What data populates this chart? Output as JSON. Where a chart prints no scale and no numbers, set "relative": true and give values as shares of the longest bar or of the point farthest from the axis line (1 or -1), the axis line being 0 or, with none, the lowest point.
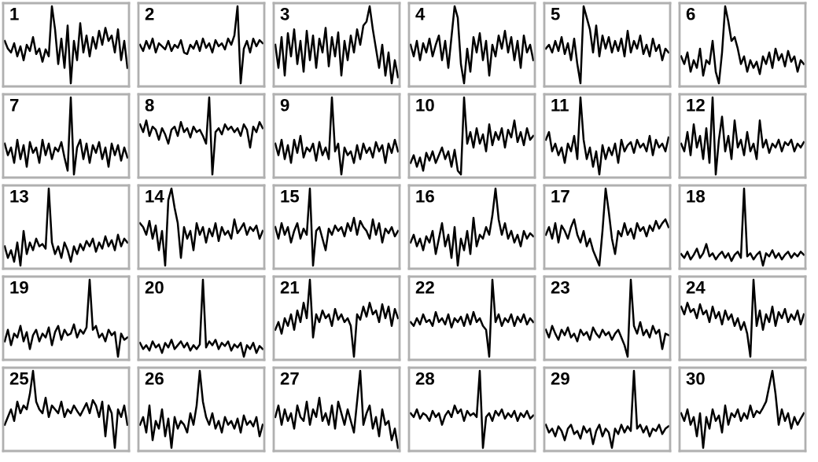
{
  "chart_data": [
    {
      "type": "line",
      "title": "1",
      "relative": true,
      "color": "#000000",
      "categories": [
        null,
        null,
        null,
        null,
        null,
        null,
        null,
        null,
        null,
        null,
        null,
        null,
        null,
        null,
        null,
        null,
        null,
        null,
        null,
        null,
        null,
        null,
        null,
        null,
        null,
        null,
        null,
        null,
        null,
        null,
        null,
        null,
        null,
        null,
        null,
        null,
        null,
        null,
        null,
        null
      ],
      "values": [
        0.55,
        0.45,
        0.4,
        0.52,
        0.35,
        0.48,
        0.3,
        0.5,
        0.42,
        0.6,
        0.38,
        0.45,
        0.28,
        0.44,
        0.35,
        1.0,
        0.7,
        0.25,
        0.58,
        0.2,
        0.75,
        0.0,
        0.55,
        0.3,
        0.78,
        0.4,
        0.62,
        0.35,
        0.6,
        0.45,
        0.68,
        0.5,
        0.72,
        0.55,
        0.62,
        0.4,
        0.7,
        0.3,
        0.55,
        0.2
      ]
    },
    {
      "type": "line",
      "title": "2",
      "relative": true,
      "color": "#000000",
      "categories": [
        null,
        null,
        null,
        null,
        null,
        null,
        null,
        null,
        null,
        null,
        null,
        null,
        null,
        null,
        null,
        null,
        null,
        null,
        null,
        null,
        null,
        null,
        null,
        null,
        null,
        null,
        null,
        null,
        null,
        null,
        null,
        null,
        null,
        null,
        null,
        null,
        null,
        null,
        null,
        null
      ],
      "values": [
        0.5,
        0.42,
        0.55,
        0.45,
        0.58,
        0.4,
        0.52,
        0.48,
        0.44,
        0.55,
        0.42,
        0.5,
        0.46,
        0.56,
        0.4,
        0.38,
        0.5,
        0.45,
        0.55,
        0.42,
        0.58,
        0.46,
        0.52,
        0.4,
        0.56,
        0.48,
        0.52,
        0.44,
        0.58,
        0.5,
        0.62,
        1.0,
        0.0,
        0.45,
        0.55,
        0.4,
        0.58,
        0.48,
        0.56,
        0.52
      ]
    },
    {
      "type": "line",
      "title": "3",
      "relative": true,
      "color": "#000000",
      "categories": [
        null,
        null,
        null,
        null,
        null,
        null,
        null,
        null,
        null,
        null,
        null,
        null,
        null,
        null,
        null,
        null,
        null,
        null,
        null,
        null,
        null,
        null,
        null,
        null,
        null,
        null,
        null,
        null,
        null,
        null,
        null,
        null,
        null,
        null,
        null,
        null,
        null,
        null,
        null,
        null
      ],
      "values": [
        0.5,
        0.2,
        0.6,
        0.1,
        0.65,
        0.35,
        0.7,
        0.25,
        0.55,
        0.15,
        0.68,
        0.3,
        0.62,
        0.2,
        0.58,
        0.4,
        0.72,
        0.22,
        0.6,
        0.35,
        0.66,
        0.1,
        0.55,
        0.3,
        0.62,
        0.4,
        0.7,
        0.5,
        0.75,
        0.8,
        1.0,
        0.7,
        0.45,
        0.2,
        0.5,
        0.1,
        0.4,
        0.0,
        0.3,
        0.08
      ]
    },
    {
      "type": "line",
      "title": "4",
      "relative": true,
      "color": "#000000",
      "categories": [
        null,
        null,
        null,
        null,
        null,
        null,
        null,
        null,
        null,
        null,
        null,
        null,
        null,
        null,
        null,
        null,
        null,
        null,
        null,
        null,
        null,
        null,
        null,
        null,
        null,
        null,
        null,
        null,
        null,
        null,
        null,
        null,
        null,
        null,
        null,
        null,
        null,
        null,
        null,
        null
      ],
      "values": [
        0.5,
        0.35,
        0.55,
        0.3,
        0.52,
        0.4,
        0.58,
        0.35,
        0.5,
        0.62,
        0.3,
        0.55,
        0.2,
        0.6,
        1.0,
        0.85,
        0.25,
        0.0,
        0.45,
        0.15,
        0.6,
        0.4,
        0.65,
        0.3,
        0.55,
        0.1,
        0.5,
        0.35,
        0.62,
        0.45,
        0.68,
        0.4,
        0.6,
        0.3,
        0.55,
        0.2,
        0.62,
        0.4,
        0.5,
        0.3
      ]
    },
    {
      "type": "line",
      "title": "5",
      "relative": true,
      "color": "#000000",
      "categories": [
        null,
        null,
        null,
        null,
        null,
        null,
        null,
        null,
        null,
        null,
        null,
        null,
        null,
        null,
        null,
        null,
        null,
        null,
        null,
        null,
        null,
        null,
        null,
        null,
        null,
        null,
        null,
        null,
        null,
        null,
        null,
        null,
        null,
        null,
        null,
        null,
        null,
        null,
        null,
        null
      ],
      "values": [
        0.45,
        0.5,
        0.4,
        0.55,
        0.42,
        0.6,
        0.38,
        0.52,
        0.3,
        0.58,
        0.25,
        0.0,
        1.0,
        0.85,
        0.7,
        0.4,
        0.75,
        0.35,
        0.62,
        0.45,
        0.6,
        0.4,
        0.55,
        0.42,
        0.58,
        0.35,
        0.68,
        0.4,
        0.55,
        0.45,
        0.62,
        0.38,
        0.5,
        0.35,
        0.58,
        0.42,
        0.5,
        0.3,
        0.45,
        0.4
      ]
    },
    {
      "type": "line",
      "title": "6",
      "relative": true,
      "color": "#000000",
      "categories": [
        null,
        null,
        null,
        null,
        null,
        null,
        null,
        null,
        null,
        null,
        null,
        null,
        null,
        null,
        null,
        null,
        null,
        null,
        null,
        null,
        null,
        null,
        null,
        null,
        null,
        null,
        null,
        null,
        null,
        null,
        null,
        null,
        null,
        null,
        null,
        null,
        null,
        null,
        null,
        null
      ],
      "values": [
        0.35,
        0.25,
        0.4,
        0.15,
        0.3,
        0.2,
        0.45,
        0.1,
        0.3,
        0.25,
        0.55,
        0.15,
        0.0,
        0.4,
        1.0,
        0.8,
        0.55,
        0.6,
        0.45,
        0.25,
        0.35,
        0.15,
        0.3,
        0.2,
        0.28,
        0.12,
        0.35,
        0.25,
        0.4,
        0.2,
        0.45,
        0.3,
        0.38,
        0.22,
        0.42,
        0.28,
        0.35,
        0.15,
        0.3,
        0.25
      ]
    },
    {
      "type": "line",
      "title": "7",
      "relative": true,
      "color": "#000000",
      "categories": [
        null,
        null,
        null,
        null,
        null,
        null,
        null,
        null,
        null,
        null,
        null,
        null,
        null,
        null,
        null,
        null,
        null,
        null,
        null,
        null,
        null,
        null,
        null,
        null,
        null,
        null,
        null,
        null,
        null,
        null,
        null,
        null,
        null,
        null,
        null,
        null,
        null,
        null,
        null,
        null
      ],
      "values": [
        0.4,
        0.25,
        0.35,
        0.15,
        0.45,
        0.2,
        0.38,
        0.1,
        0.42,
        0.28,
        0.35,
        0.15,
        0.45,
        0.25,
        0.4,
        0.2,
        0.35,
        0.3,
        0.42,
        0.22,
        0.05,
        1.0,
        0.0,
        0.35,
        0.45,
        0.2,
        0.4,
        0.15,
        0.38,
        0.28,
        0.42,
        0.2,
        0.35,
        0.1,
        0.4,
        0.25,
        0.38,
        0.18,
        0.35,
        0.22
      ]
    },
    {
      "type": "line",
      "title": "8",
      "relative": true,
      "color": "#000000",
      "categories": [
        null,
        null,
        null,
        null,
        null,
        null,
        null,
        null,
        null,
        null,
        null,
        null,
        null,
        null,
        null,
        null,
        null,
        null,
        null,
        null,
        null,
        null,
        null,
        null,
        null,
        null,
        null,
        null,
        null,
        null,
        null,
        null,
        null,
        null,
        null,
        null,
        null,
        null,
        null,
        null
      ],
      "values": [
        0.65,
        0.55,
        0.7,
        0.5,
        0.62,
        0.58,
        0.45,
        0.6,
        0.52,
        0.4,
        0.58,
        0.62,
        0.5,
        0.68,
        0.55,
        0.6,
        0.48,
        0.62,
        0.55,
        0.58,
        0.5,
        0.4,
        1.0,
        0.0,
        0.55,
        0.6,
        0.52,
        0.65,
        0.58,
        0.62,
        0.55,
        0.6,
        0.5,
        0.65,
        0.58,
        0.35,
        0.62,
        0.55,
        0.68,
        0.6
      ]
    },
    {
      "type": "line",
      "title": "9",
      "relative": true,
      "color": "#000000",
      "categories": [
        null,
        null,
        null,
        null,
        null,
        null,
        null,
        null,
        null,
        null,
        null,
        null,
        null,
        null,
        null,
        null,
        null,
        null,
        null,
        null,
        null,
        null,
        null,
        null,
        null,
        null,
        null,
        null,
        null,
        null,
        null,
        null,
        null,
        null,
        null,
        null,
        null,
        null,
        null,
        null
      ],
      "values": [
        0.4,
        0.25,
        0.45,
        0.2,
        0.38,
        0.15,
        0.45,
        0.28,
        0.5,
        0.22,
        0.35,
        0.3,
        0.4,
        0.18,
        0.42,
        0.25,
        0.35,
        0.2,
        1.0,
        0.3,
        0.4,
        0.0,
        0.35,
        0.25,
        0.3,
        0.15,
        0.38,
        0.2,
        0.4,
        0.28,
        0.35,
        0.22,
        0.42,
        0.3,
        0.38,
        0.15,
        0.4,
        0.28,
        0.45,
        0.3
      ]
    },
    {
      "type": "line",
      "title": "10",
      "relative": true,
      "color": "#000000",
      "categories": [
        null,
        null,
        null,
        null,
        null,
        null,
        null,
        null,
        null,
        null,
        null,
        null,
        null,
        null,
        null,
        null,
        null,
        null,
        null,
        null,
        null,
        null,
        null,
        null,
        null,
        null,
        null,
        null,
        null,
        null,
        null,
        null,
        null,
        null,
        null,
        null,
        null,
        null,
        null,
        null
      ],
      "values": [
        0.15,
        0.25,
        0.1,
        0.22,
        0.05,
        0.28,
        0.18,
        0.3,
        0.15,
        0.25,
        0.35,
        0.2,
        0.3,
        0.1,
        0.32,
        0.05,
        0.0,
        1.0,
        0.4,
        0.55,
        0.35,
        0.6,
        0.4,
        0.52,
        0.3,
        0.65,
        0.38,
        0.55,
        0.45,
        0.6,
        0.35,
        0.58,
        0.48,
        0.7,
        0.42,
        0.55,
        0.38,
        0.6,
        0.45,
        0.5
      ]
    },
    {
      "type": "line",
      "title": "11",
      "relative": true,
      "color": "#000000",
      "categories": [
        null,
        null,
        null,
        null,
        null,
        null,
        null,
        null,
        null,
        null,
        null,
        null,
        null,
        null,
        null,
        null,
        null,
        null,
        null,
        null,
        null,
        null,
        null,
        null,
        null,
        null,
        null,
        null,
        null,
        null,
        null,
        null,
        null,
        null,
        null,
        null,
        null,
        null,
        null,
        null
      ],
      "values": [
        0.45,
        0.55,
        0.3,
        0.4,
        0.25,
        0.35,
        0.15,
        0.4,
        0.3,
        0.5,
        0.2,
        1.0,
        0.45,
        0.2,
        0.35,
        0.1,
        0.3,
        0.0,
        0.38,
        0.2,
        0.35,
        0.25,
        0.4,
        0.15,
        0.45,
        0.3,
        0.38,
        0.42,
        0.28,
        0.45,
        0.35,
        0.4,
        0.3,
        0.5,
        0.25,
        0.45,
        0.35,
        0.4,
        0.3,
        0.48
      ]
    },
    {
      "type": "line",
      "title": "12",
      "relative": true,
      "color": "#000000",
      "categories": [
        null,
        null,
        null,
        null,
        null,
        null,
        null,
        null,
        null,
        null,
        null,
        null,
        null,
        null,
        null,
        null,
        null,
        null,
        null,
        null,
        null,
        null,
        null,
        null,
        null,
        null,
        null,
        null,
        null,
        null,
        null,
        null,
        null,
        null,
        null,
        null,
        null,
        null,
        null,
        null
      ],
      "values": [
        0.4,
        0.3,
        0.55,
        0.25,
        0.65,
        0.35,
        0.5,
        0.2,
        0.6,
        0.15,
        1.0,
        0.0,
        0.45,
        0.75,
        0.3,
        0.5,
        0.2,
        0.7,
        0.35,
        0.45,
        0.25,
        0.55,
        0.3,
        0.4,
        0.2,
        0.7,
        0.35,
        0.45,
        0.28,
        0.4,
        0.35,
        0.45,
        0.3,
        0.42,
        0.38,
        0.45,
        0.3,
        0.4,
        0.35,
        0.42
      ]
    },
    {
      "type": "line",
      "title": "13",
      "relative": true,
      "color": "#000000",
      "categories": [
        null,
        null,
        null,
        null,
        null,
        null,
        null,
        null,
        null,
        null,
        null,
        null,
        null,
        null,
        null,
        null,
        null,
        null,
        null,
        null,
        null,
        null,
        null,
        null,
        null,
        null,
        null,
        null,
        null,
        null,
        null,
        null,
        null,
        null,
        null,
        null,
        null,
        null,
        null,
        null
      ],
      "values": [
        0.25,
        0.1,
        0.2,
        0.05,
        0.3,
        0.0,
        0.45,
        0.15,
        0.3,
        0.2,
        0.35,
        0.25,
        0.28,
        0.22,
        1.0,
        0.3,
        0.15,
        0.25,
        0.1,
        0.3,
        0.2,
        0.05,
        0.25,
        0.15,
        0.28,
        0.2,
        0.32,
        0.25,
        0.35,
        0.18,
        0.3,
        0.22,
        0.38,
        0.25,
        0.33,
        0.2,
        0.4,
        0.25,
        0.35,
        0.3
      ]
    },
    {
      "type": "line",
      "title": "14",
      "relative": true,
      "color": "#000000",
      "categories": [
        null,
        null,
        null,
        null,
        null,
        null,
        null,
        null,
        null,
        null,
        null,
        null,
        null,
        null,
        null,
        null,
        null,
        null,
        null,
        null,
        null,
        null,
        null,
        null,
        null,
        null,
        null,
        null,
        null,
        null,
        null,
        null,
        null,
        null,
        null,
        null,
        null,
        null,
        null,
        null
      ],
      "values": [
        0.55,
        0.5,
        0.4,
        0.58,
        0.35,
        0.52,
        0.2,
        0.45,
        0.0,
        0.85,
        1.0,
        0.75,
        0.55,
        0.1,
        0.5,
        0.35,
        0.45,
        0.2,
        0.55,
        0.4,
        0.5,
        0.3,
        0.48,
        0.38,
        0.55,
        0.32,
        0.5,
        0.4,
        0.45,
        0.35,
        0.6,
        0.42,
        0.48,
        0.55,
        0.4,
        0.5,
        0.45,
        0.52,
        0.35,
        0.45
      ]
    },
    {
      "type": "line",
      "title": "15",
      "relative": true,
      "color": "#000000",
      "categories": [
        null,
        null,
        null,
        null,
        null,
        null,
        null,
        null,
        null,
        null,
        null,
        null,
        null,
        null,
        null,
        null,
        null,
        null,
        null,
        null,
        null,
        null,
        null,
        null,
        null,
        null,
        null,
        null,
        null,
        null,
        null,
        null,
        null,
        null,
        null,
        null,
        null,
        null,
        null,
        null
      ],
      "values": [
        0.5,
        0.35,
        0.55,
        0.4,
        0.5,
        0.3,
        0.45,
        0.55,
        0.35,
        0.48,
        0.4,
        1.0,
        0.0,
        0.45,
        0.5,
        0.35,
        0.2,
        0.48,
        0.4,
        0.52,
        0.45,
        0.5,
        0.38,
        0.55,
        0.45,
        0.62,
        0.4,
        0.58,
        0.5,
        0.45,
        0.35,
        0.6,
        0.4,
        0.55,
        0.3,
        0.48,
        0.42,
        0.5,
        0.38,
        0.45
      ]
    },
    {
      "type": "line",
      "title": "16",
      "relative": true,
      "color": "#000000",
      "categories": [
        null,
        null,
        null,
        null,
        null,
        null,
        null,
        null,
        null,
        null,
        null,
        null,
        null,
        null,
        null,
        null,
        null,
        null,
        null,
        null,
        null,
        null,
        null,
        null,
        null,
        null,
        null,
        null,
        null,
        null,
        null,
        null,
        null,
        null,
        null,
        null,
        null,
        null,
        null,
        null
      ],
      "values": [
        0.3,
        0.4,
        0.25,
        0.35,
        0.2,
        0.38,
        0.3,
        0.45,
        0.15,
        0.35,
        0.55,
        0.25,
        0.4,
        0.1,
        0.5,
        0.0,
        0.35,
        0.2,
        0.45,
        0.15,
        0.62,
        0.25,
        0.4,
        0.35,
        0.5,
        0.4,
        0.65,
        1.0,
        0.6,
        0.4,
        0.55,
        0.35,
        0.45,
        0.3,
        0.4,
        0.25,
        0.45,
        0.35,
        0.42,
        0.38
      ]
    },
    {
      "type": "line",
      "title": "17",
      "relative": true,
      "color": "#000000",
      "categories": [
        null,
        null,
        null,
        null,
        null,
        null,
        null,
        null,
        null,
        null,
        null,
        null,
        null,
        null,
        null,
        null,
        null,
        null,
        null,
        null,
        null,
        null,
        null,
        null,
        null,
        null,
        null,
        null,
        null,
        null,
        null,
        null,
        null,
        null,
        null,
        null,
        null,
        null,
        null,
        null
      ],
      "values": [
        0.4,
        0.5,
        0.35,
        0.55,
        0.3,
        0.52,
        0.45,
        0.35,
        0.5,
        0.6,
        0.4,
        0.3,
        0.45,
        0.25,
        0.35,
        0.2,
        0.1,
        0.0,
        0.45,
        1.0,
        0.7,
        0.35,
        0.15,
        0.45,
        0.38,
        0.55,
        0.4,
        0.48,
        0.35,
        0.55,
        0.45,
        0.5,
        0.38,
        0.52,
        0.45,
        0.58,
        0.48,
        0.55,
        0.6,
        0.5
      ]
    },
    {
      "type": "line",
      "title": "18",
      "relative": true,
      "color": "#000000",
      "categories": [
        null,
        null,
        null,
        null,
        null,
        null,
        null,
        null,
        null,
        null,
        null,
        null,
        null,
        null,
        null,
        null,
        null,
        null,
        null,
        null,
        null,
        null,
        null,
        null,
        null,
        null,
        null,
        null,
        null,
        null,
        null,
        null,
        null,
        null,
        null,
        null,
        null,
        null,
        null,
        null
      ],
      "values": [
        0.15,
        0.1,
        0.18,
        0.08,
        0.14,
        0.22,
        0.1,
        0.16,
        0.28,
        0.12,
        0.16,
        0.08,
        0.14,
        0.18,
        0.1,
        0.16,
        0.06,
        0.14,
        0.18,
        0.1,
        1.0,
        0.12,
        0.16,
        0.08,
        0.14,
        0.18,
        0.0,
        0.16,
        0.12,
        0.2,
        0.1,
        0.16,
        0.08,
        0.14,
        0.18,
        0.1,
        0.16,
        0.12,
        0.18,
        0.14
      ]
    },
    {
      "type": "line",
      "title": "19",
      "relative": true,
      "color": "#000000",
      "categories": [
        null,
        null,
        null,
        null,
        null,
        null,
        null,
        null,
        null,
        null,
        null,
        null,
        null,
        null,
        null,
        null,
        null,
        null,
        null,
        null,
        null,
        null,
        null,
        null,
        null,
        null,
        null,
        null,
        null,
        null,
        null,
        null,
        null,
        null,
        null,
        null,
        null,
        null,
        null,
        null
      ],
      "values": [
        0.2,
        0.35,
        0.15,
        0.3,
        0.25,
        0.4,
        0.2,
        0.32,
        0.1,
        0.28,
        0.35,
        0.2,
        0.3,
        0.25,
        0.38,
        0.15,
        0.32,
        0.4,
        0.22,
        0.35,
        0.28,
        0.3,
        0.42,
        0.25,
        0.35,
        0.3,
        0.38,
        1.0,
        0.35,
        0.4,
        0.25,
        0.3,
        0.2,
        0.35,
        0.28,
        0.32,
        0.0,
        0.3,
        0.22,
        0.25
      ]
    },
    {
      "type": "line",
      "title": "20",
      "relative": true,
      "color": "#000000",
      "categories": [
        null,
        null,
        null,
        null,
        null,
        null,
        null,
        null,
        null,
        null,
        null,
        null,
        null,
        null,
        null,
        null,
        null,
        null,
        null,
        null,
        null,
        null,
        null,
        null,
        null,
        null,
        null,
        null,
        null,
        null,
        null,
        null,
        null,
        null,
        null,
        null,
        null,
        null,
        null,
        null
      ],
      "values": [
        0.18,
        0.1,
        0.15,
        0.08,
        0.2,
        0.12,
        0.16,
        0.05,
        0.18,
        0.12,
        0.22,
        0.1,
        0.15,
        0.2,
        0.12,
        0.18,
        0.08,
        0.15,
        0.1,
        0.16,
        1.0,
        0.12,
        0.2,
        0.15,
        0.22,
        0.1,
        0.18,
        0.14,
        0.2,
        0.08,
        0.16,
        0.12,
        0.18,
        0.0,
        0.15,
        0.1,
        0.18,
        0.05,
        0.14,
        0.1
      ]
    },
    {
      "type": "line",
      "title": "21",
      "relative": true,
      "color": "#000000",
      "categories": [
        null,
        null,
        null,
        null,
        null,
        null,
        null,
        null,
        null,
        null,
        null,
        null,
        null,
        null,
        null,
        null,
        null,
        null,
        null,
        null,
        null,
        null,
        null,
        null,
        null,
        null,
        null,
        null,
        null,
        null,
        null,
        null,
        null,
        null,
        null,
        null,
        null,
        null,
        null,
        null
      ],
      "values": [
        0.35,
        0.45,
        0.3,
        0.5,
        0.4,
        0.55,
        0.35,
        0.6,
        0.45,
        0.7,
        0.5,
        1.0,
        0.25,
        0.55,
        0.45,
        0.6,
        0.5,
        0.55,
        0.4,
        0.62,
        0.48,
        0.55,
        0.45,
        0.5,
        0.4,
        0.0,
        0.55,
        0.48,
        0.65,
        0.52,
        0.7,
        0.55,
        0.6,
        0.45,
        0.68,
        0.5,
        0.65,
        0.4,
        0.62,
        0.5
      ]
    },
    {
      "type": "line",
      "title": "22",
      "relative": true,
      "color": "#000000",
      "categories": [
        null,
        null,
        null,
        null,
        null,
        null,
        null,
        null,
        null,
        null,
        null,
        null,
        null,
        null,
        null,
        null,
        null,
        null,
        null,
        null,
        null,
        null,
        null,
        null,
        null,
        null,
        null,
        null,
        null,
        null,
        null,
        null,
        null,
        null,
        null,
        null,
        null,
        null,
        null,
        null
      ],
      "values": [
        0.45,
        0.4,
        0.5,
        0.42,
        0.55,
        0.45,
        0.48,
        0.4,
        0.58,
        0.45,
        0.5,
        0.42,
        0.55,
        0.38,
        0.5,
        0.45,
        0.52,
        0.4,
        0.55,
        0.42,
        0.58,
        0.45,
        0.5,
        0.4,
        0.35,
        0.0,
        1.0,
        0.45,
        0.55,
        0.4,
        0.5,
        0.45,
        0.55,
        0.4,
        0.52,
        0.45,
        0.55,
        0.42,
        0.5,
        0.45
      ]
    },
    {
      "type": "line",
      "title": "23",
      "relative": true,
      "color": "#000000",
      "categories": [
        null,
        null,
        null,
        null,
        null,
        null,
        null,
        null,
        null,
        null,
        null,
        null,
        null,
        null,
        null,
        null,
        null,
        null,
        null,
        null,
        null,
        null,
        null,
        null,
        null,
        null,
        null,
        null,
        null,
        null,
        null,
        null,
        null,
        null,
        null,
        null,
        null,
        null,
        null,
        null
      ],
      "values": [
        0.35,
        0.25,
        0.4,
        0.3,
        0.22,
        0.35,
        0.28,
        0.38,
        0.25,
        0.3,
        0.2,
        0.35,
        0.28,
        0.32,
        0.22,
        0.38,
        0.3,
        0.25,
        0.35,
        0.28,
        0.32,
        0.22,
        0.3,
        0.35,
        0.25,
        0.15,
        0.0,
        1.0,
        0.4,
        0.3,
        0.45,
        0.28,
        0.35,
        0.25,
        0.4,
        0.3,
        0.35,
        0.1,
        0.3,
        0.28
      ]
    },
    {
      "type": "line",
      "title": "24",
      "relative": true,
      "color": "#000000",
      "categories": [
        null,
        null,
        null,
        null,
        null,
        null,
        null,
        null,
        null,
        null,
        null,
        null,
        null,
        null,
        null,
        null,
        null,
        null,
        null,
        null,
        null,
        null,
        null,
        null,
        null,
        null,
        null,
        null,
        null,
        null,
        null,
        null,
        null,
        null,
        null,
        null,
        null,
        null,
        null,
        null
      ],
      "values": [
        0.65,
        0.55,
        0.7,
        0.58,
        0.62,
        0.5,
        0.68,
        0.55,
        0.6,
        0.45,
        0.65,
        0.5,
        0.58,
        0.42,
        0.6,
        0.48,
        0.55,
        0.4,
        0.5,
        0.35,
        0.45,
        0.3,
        0.0,
        1.0,
        0.4,
        0.6,
        0.35,
        0.55,
        0.45,
        0.65,
        0.4,
        0.58,
        0.5,
        0.62,
        0.45,
        0.55,
        0.48,
        0.6,
        0.42,
        0.55
      ]
    },
    {
      "type": "line",
      "title": "25",
      "relative": true,
      "color": "#000000",
      "categories": [
        null,
        null,
        null,
        null,
        null,
        null,
        null,
        null,
        null,
        null,
        null,
        null,
        null,
        null,
        null,
        null,
        null,
        null,
        null,
        null,
        null,
        null,
        null,
        null,
        null,
        null,
        null,
        null,
        null,
        null,
        null,
        null,
        null,
        null,
        null,
        null,
        null,
        null,
        null,
        null
      ],
      "values": [
        0.3,
        0.4,
        0.5,
        0.35,
        0.6,
        0.45,
        0.55,
        0.5,
        0.7,
        1.0,
        0.6,
        0.5,
        0.45,
        0.65,
        0.4,
        0.55,
        0.5,
        0.45,
        0.6,
        0.4,
        0.5,
        0.45,
        0.55,
        0.48,
        0.42,
        0.5,
        0.58,
        0.45,
        0.62,
        0.55,
        0.4,
        0.6,
        0.15,
        0.55,
        0.45,
        0.0,
        0.5,
        0.4,
        0.55,
        0.3
      ]
    },
    {
      "type": "line",
      "title": "26",
      "relative": true,
      "color": "#000000",
      "categories": [
        null,
        null,
        null,
        null,
        null,
        null,
        null,
        null,
        null,
        null,
        null,
        null,
        null,
        null,
        null,
        null,
        null,
        null,
        null,
        null,
        null,
        null,
        null,
        null,
        null,
        null,
        null,
        null,
        null,
        null,
        null,
        null,
        null,
        null,
        null,
        null,
        null,
        null,
        null,
        null
      ],
      "values": [
        0.3,
        0.4,
        0.2,
        0.55,
        0.1,
        0.35,
        0.25,
        0.5,
        0.15,
        0.38,
        0.0,
        0.4,
        0.25,
        0.35,
        0.3,
        0.2,
        0.45,
        0.3,
        0.55,
        1.0,
        0.6,
        0.4,
        0.3,
        0.45,
        0.25,
        0.35,
        0.2,
        0.4,
        0.3,
        0.35,
        0.25,
        0.38,
        0.2,
        0.42,
        0.3,
        0.35,
        0.28,
        0.4,
        0.15,
        0.3
      ]
    },
    {
      "type": "line",
      "title": "27",
      "relative": true,
      "color": "#000000",
      "categories": [
        null,
        null,
        null,
        null,
        null,
        null,
        null,
        null,
        null,
        null,
        null,
        null,
        null,
        null,
        null,
        null,
        null,
        null,
        null,
        null,
        null,
        null,
        null,
        null,
        null,
        null,
        null,
        null,
        null,
        null,
        null,
        null,
        null,
        null,
        null,
        null,
        null,
        null,
        null,
        null
      ],
      "values": [
        0.4,
        0.55,
        0.3,
        0.5,
        0.35,
        0.45,
        0.25,
        0.55,
        0.4,
        0.35,
        0.6,
        0.3,
        0.5,
        0.4,
        0.65,
        0.35,
        0.45,
        0.3,
        0.55,
        0.25,
        0.6,
        0.45,
        0.3,
        0.5,
        0.35,
        0.2,
        0.6,
        1.0,
        0.3,
        0.45,
        0.55,
        0.25,
        0.4,
        0.15,
        0.5,
        0.3,
        0.35,
        0.1,
        0.25,
        0.0
      ]
    },
    {
      "type": "line",
      "title": "28",
      "relative": true,
      "color": "#000000",
      "categories": [
        null,
        null,
        null,
        null,
        null,
        null,
        null,
        null,
        null,
        null,
        null,
        null,
        null,
        null,
        null,
        null,
        null,
        null,
        null,
        null,
        null,
        null,
        null,
        null,
        null,
        null,
        null,
        null,
        null,
        null,
        null,
        null,
        null,
        null,
        null,
        null,
        null,
        null,
        null,
        null
      ],
      "values": [
        0.45,
        0.4,
        0.5,
        0.38,
        0.45,
        0.42,
        0.35,
        0.48,
        0.4,
        0.45,
        0.3,
        0.42,
        0.48,
        0.4,
        0.55,
        0.45,
        0.5,
        0.35,
        0.48,
        0.42,
        0.45,
        0.4,
        1.0,
        0.0,
        0.4,
        0.45,
        0.35,
        0.48,
        0.42,
        0.5,
        0.38,
        0.45,
        0.4,
        0.48,
        0.35,
        0.45,
        0.4,
        0.48,
        0.38,
        0.42
      ]
    },
    {
      "type": "line",
      "title": "29",
      "relative": true,
      "color": "#000000",
      "categories": [
        null,
        null,
        null,
        null,
        null,
        null,
        null,
        null,
        null,
        null,
        null,
        null,
        null,
        null,
        null,
        null,
        null,
        null,
        null,
        null,
        null,
        null,
        null,
        null,
        null,
        null,
        null,
        null,
        null,
        null,
        null,
        null,
        null,
        null,
        null,
        null,
        null,
        null,
        null,
        null
      ],
      "values": [
        0.3,
        0.2,
        0.25,
        0.15,
        0.28,
        0.22,
        0.1,
        0.25,
        0.3,
        0.18,
        0.22,
        0.12,
        0.28,
        0.2,
        0.25,
        0.05,
        0.22,
        0.3,
        0.15,
        0.25,
        0.2,
        0.0,
        0.25,
        0.18,
        0.3,
        0.2,
        0.28,
        0.22,
        1.0,
        0.25,
        0.3,
        0.2,
        0.28,
        0.15,
        0.25,
        0.22,
        0.3,
        0.18,
        0.25,
        0.28
      ]
    },
    {
      "type": "line",
      "title": "30",
      "relative": true,
      "color": "#000000",
      "categories": [
        null,
        null,
        null,
        null,
        null,
        null,
        null,
        null,
        null,
        null,
        null,
        null,
        null,
        null,
        null,
        null,
        null,
        null,
        null,
        null,
        null,
        null,
        null,
        null,
        null,
        null,
        null,
        null,
        null,
        null,
        null,
        null,
        null,
        null,
        null,
        null,
        null,
        null,
        null,
        null
      ],
      "values": [
        0.45,
        0.35,
        0.5,
        0.3,
        0.4,
        0.15,
        0.45,
        0.0,
        0.4,
        0.25,
        0.5,
        0.35,
        0.42,
        0.2,
        0.55,
        0.3,
        0.45,
        0.4,
        0.5,
        0.35,
        0.45,
        0.38,
        0.55,
        0.4,
        0.48,
        0.45,
        0.52,
        0.6,
        0.8,
        1.0,
        0.7,
        0.3,
        0.5,
        0.35,
        0.45,
        0.25,
        0.4,
        0.3,
        0.38,
        0.45
      ]
    }
  ]
}
